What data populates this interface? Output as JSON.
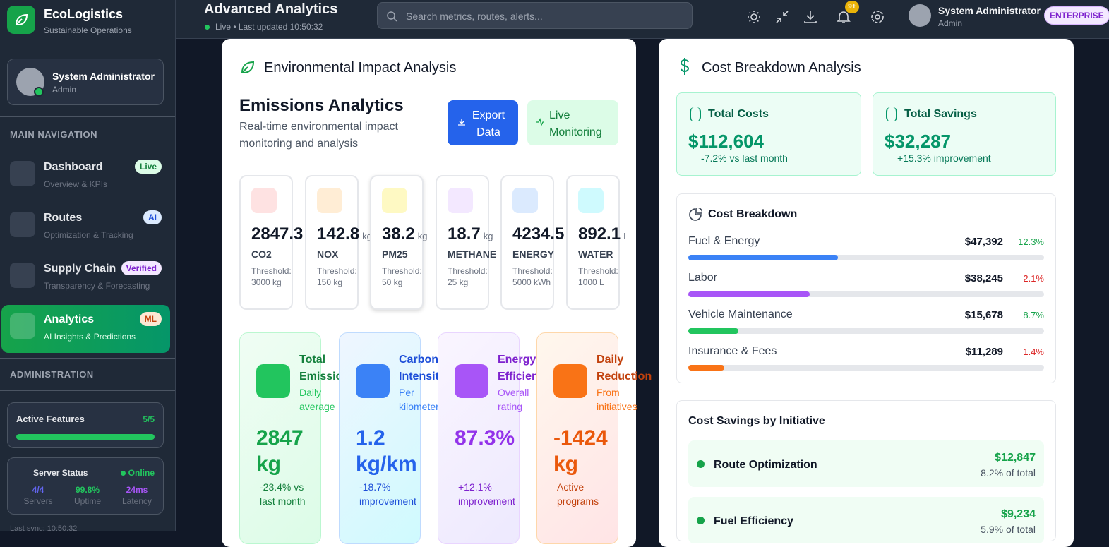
{
  "brand": {
    "name": "EcoLogistics",
    "tagline": "Sustainable Operations"
  },
  "sidebar": {
    "user": {
      "name": "System Administrator",
      "role": "Admin"
    },
    "nav_heading": "MAIN NAVIGATION",
    "nav": [
      {
        "label": "Dashboard",
        "sub": "Overview & KPIs",
        "badge": "Live"
      },
      {
        "label": "Routes",
        "sub": "Optimization & Tracking",
        "badge": "AI"
      },
      {
        "label": "Supply Chain",
        "sub": "Transparency & Forecasting",
        "badge": "Verified"
      },
      {
        "label": "Analytics",
        "sub": "AI Insights & Predictions",
        "badge": "ML"
      }
    ],
    "admin_heading": "ADMINISTRATION",
    "features": {
      "title": "Active Features",
      "count": "5/5"
    },
    "server": {
      "title": "Server Status",
      "status": "Online",
      "stats": [
        {
          "value": "4/4",
          "label": "Servers"
        },
        {
          "value": "99.8%",
          "label": "Uptime"
        },
        {
          "value": "24ms",
          "label": "Latency"
        }
      ]
    },
    "last_sync": "Last sync: 10:50:32"
  },
  "header": {
    "title": "Advanced Analytics",
    "status": "Live • Last updated 10:50:32",
    "search_placeholder": "Search metrics, routes, alerts...",
    "notifications": "9+",
    "user": {
      "name": "System Administrator",
      "role": "Admin"
    },
    "plan": "ENTERPRISE"
  },
  "environment": {
    "title": "Environmental Impact Analysis",
    "heading": "Emissions Analytics",
    "subtitle": "Real-time environmental impact monitoring and analysis",
    "buttons": [
      "Export Data",
      "Live Monitoring"
    ],
    "metrics": [
      {
        "value": "2847.3",
        "name": "CO2",
        "threshold": "Threshold: 3000 kg"
      },
      {
        "value": "142.8",
        "unit": "kg",
        "name": "NOX",
        "threshold": "Threshold: 150 kg"
      },
      {
        "value": "38.2",
        "unit": "kg",
        "name": "PM25",
        "threshold": "Threshold: 50 kg"
      },
      {
        "value": "18.7",
        "unit": "kg",
        "name": "METHANE",
        "threshold": "Threshold: 25 kg"
      },
      {
        "value": "4234.5",
        "name": "ENERGY",
        "threshold": "Threshold: 5000 kWh"
      },
      {
        "value": "892.1",
        "unit": "L",
        "name": "WATER",
        "threshold": "Threshold: 1000 L"
      }
    ],
    "summary": [
      {
        "title": "Total Emissions",
        "sub": "Daily average",
        "value": "2847 kg",
        "change": "-23.4% vs last month"
      },
      {
        "title": "Carbon Intensity",
        "sub": "Per kilometer",
        "value": "1.2 kg/km",
        "change": "-18.7% improvement"
      },
      {
        "title": "Energy Efficiency",
        "sub": "Overall rating",
        "value": "87.3%",
        "change": "+12.1% improvement"
      },
      {
        "title": "Daily Reduction",
        "sub": "From initiatives",
        "value": "-1424 kg",
        "change": "Active programs"
      }
    ]
  },
  "cost": {
    "title": "Cost Breakdown Analysis",
    "totals": [
      {
        "title": "Total Costs",
        "value": "$112,604",
        "change": "-7.2% vs last month"
      },
      {
        "title": "Total Savings",
        "value": "$32,287",
        "change": "+15.3% improvement"
      }
    ],
    "breakdown_title": "Cost Breakdown",
    "breakdown": [
      {
        "label": "Fuel & Energy",
        "amount": "$47,392",
        "change": "12.3%"
      },
      {
        "label": "Labor",
        "amount": "$38,245",
        "change": "2.1%"
      },
      {
        "label": "Vehicle Maintenance",
        "amount": "$15,678",
        "change": "8.7%"
      },
      {
        "label": "Insurance & Fees",
        "amount": "$11,289",
        "change": "1.4%"
      }
    ],
    "savings_title": "Cost Savings by Initiative",
    "savings": [
      {
        "name": "Route Optimization",
        "amount": "$12,847",
        "share": "8.2% of total"
      },
      {
        "name": "Fuel Efficiency",
        "amount": "$9,234",
        "share": "5.9% of total"
      }
    ]
  }
}
